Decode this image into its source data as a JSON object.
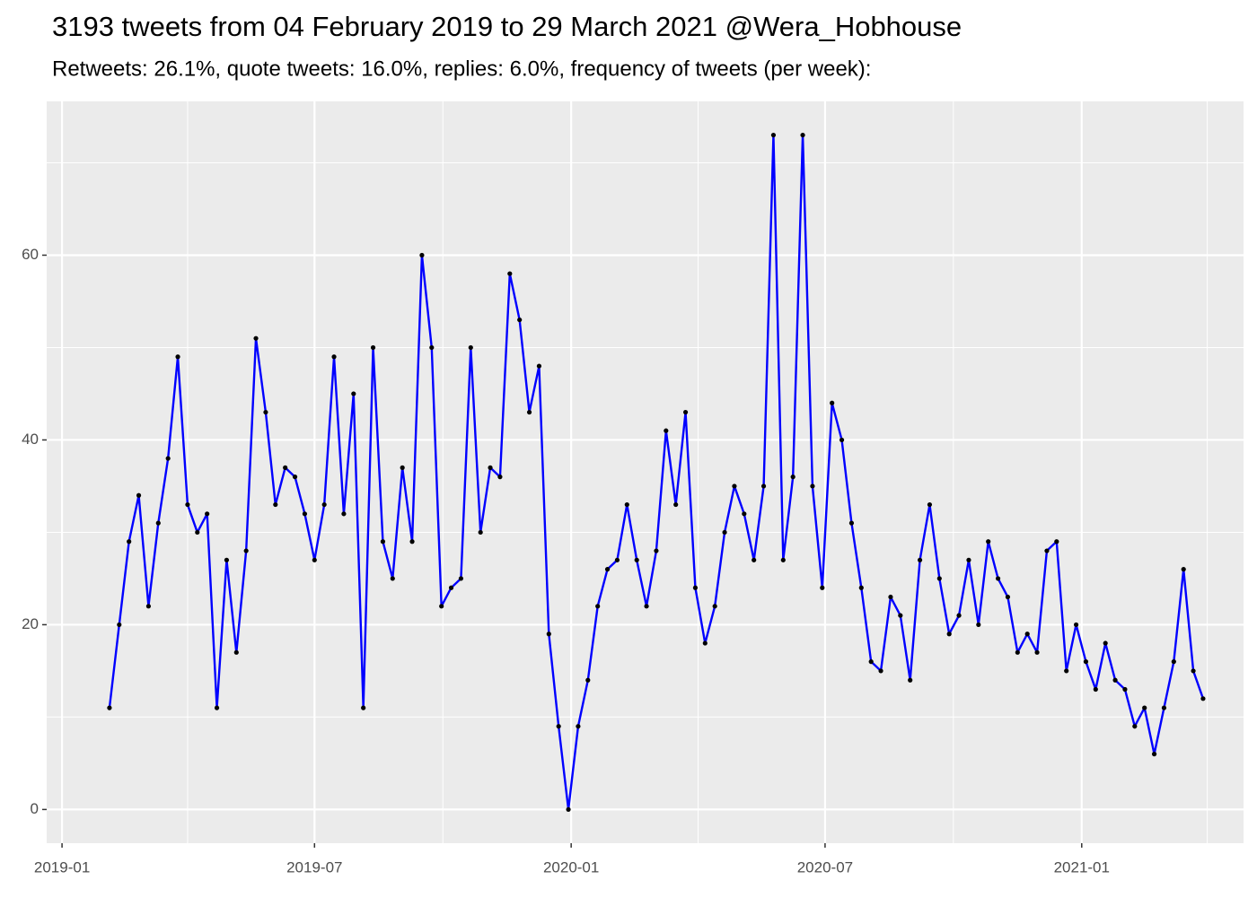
{
  "chart_data": {
    "type": "line",
    "title": "3193 tweets from 04 February 2019 to 29 March 2021 @Wera_Hobhouse",
    "subtitle": "Retweets: 26.1%, quote tweets: 16.0%, replies: 6.0%, frequency of tweets (per week):",
    "x": [
      "2019-02-04",
      "2019-02-11",
      "2019-02-18",
      "2019-02-25",
      "2019-03-04",
      "2019-03-11",
      "2019-03-18",
      "2019-03-25",
      "2019-04-01",
      "2019-04-08",
      "2019-04-15",
      "2019-04-22",
      "2019-04-29",
      "2019-05-06",
      "2019-05-13",
      "2019-05-20",
      "2019-05-27",
      "2019-06-03",
      "2019-06-10",
      "2019-06-17",
      "2019-06-24",
      "2019-07-01",
      "2019-07-08",
      "2019-07-15",
      "2019-07-22",
      "2019-07-29",
      "2019-08-05",
      "2019-08-12",
      "2019-08-19",
      "2019-08-26",
      "2019-09-02",
      "2019-09-09",
      "2019-09-16",
      "2019-09-23",
      "2019-09-30",
      "2019-10-07",
      "2019-10-14",
      "2019-10-21",
      "2019-10-28",
      "2019-11-04",
      "2019-11-11",
      "2019-11-18",
      "2019-11-25",
      "2019-12-02",
      "2019-12-09",
      "2019-12-16",
      "2019-12-23",
      "2019-12-30",
      "2020-01-06",
      "2020-01-13",
      "2020-01-20",
      "2020-01-27",
      "2020-02-03",
      "2020-02-10",
      "2020-02-17",
      "2020-02-24",
      "2020-03-02",
      "2020-03-09",
      "2020-03-16",
      "2020-03-23",
      "2020-03-30",
      "2020-04-06",
      "2020-04-13",
      "2020-04-20",
      "2020-04-27",
      "2020-05-04",
      "2020-05-11",
      "2020-05-18",
      "2020-05-25",
      "2020-06-01",
      "2020-06-08",
      "2020-06-15",
      "2020-06-22",
      "2020-06-29",
      "2020-07-06",
      "2020-07-13",
      "2020-07-20",
      "2020-07-27",
      "2020-08-03",
      "2020-08-10",
      "2020-08-17",
      "2020-08-24",
      "2020-08-31",
      "2020-09-07",
      "2020-09-14",
      "2020-09-21",
      "2020-09-28",
      "2020-10-05",
      "2020-10-12",
      "2020-10-19",
      "2020-10-26",
      "2020-11-02",
      "2020-11-09",
      "2020-11-16",
      "2020-11-23",
      "2020-11-30",
      "2020-12-07",
      "2020-12-14",
      "2020-12-21",
      "2020-12-28",
      "2021-01-04",
      "2021-01-11",
      "2021-01-18",
      "2021-01-25",
      "2021-02-01",
      "2021-02-08",
      "2021-02-15",
      "2021-02-22",
      "2021-03-01",
      "2021-03-08",
      "2021-03-15",
      "2021-03-22",
      "2021-03-29"
    ],
    "values": [
      11,
      20,
      29,
      34,
      22,
      31,
      38,
      49,
      33,
      30,
      32,
      11,
      27,
      17,
      28,
      51,
      43,
      33,
      37,
      36,
      32,
      27,
      33,
      49,
      32,
      45,
      11,
      50,
      29,
      25,
      37,
      29,
      60,
      50,
      22,
      24,
      25,
      50,
      30,
      37,
      36,
      58,
      53,
      43,
      48,
      19,
      9,
      0,
      9,
      14,
      22,
      26,
      27,
      33,
      27,
      22,
      28,
      41,
      33,
      43,
      24,
      18,
      22,
      30,
      35,
      32,
      27,
      35,
      73,
      27,
      36,
      73,
      35,
      24,
      44,
      40,
      31,
      24,
      16,
      15,
      23,
      21,
      14,
      27,
      33,
      25,
      19,
      21,
      27,
      20,
      29,
      25,
      23,
      17,
      19,
      17,
      28,
      29,
      15,
      20,
      16,
      13,
      18,
      14,
      13,
      9,
      11,
      6,
      11,
      16,
      26,
      15,
      12
    ],
    "color": "#0000ff",
    "point_color": "#000000",
    "xlim": [
      "2018-12-21",
      "2021-04-27"
    ],
    "xticks": [
      "2019-01",
      "2019-07",
      "2020-01",
      "2020-07",
      "2021-01"
    ],
    "x_minor_ticks": [
      "2019-04",
      "2019-10",
      "2020-04",
      "2020-10",
      "2021-04"
    ],
    "ylim": [
      -3.65,
      76.65
    ],
    "yticks": [
      0,
      20,
      40,
      60
    ],
    "y_minor_ticks": [
      10,
      30,
      50,
      70
    ],
    "grid": true
  }
}
